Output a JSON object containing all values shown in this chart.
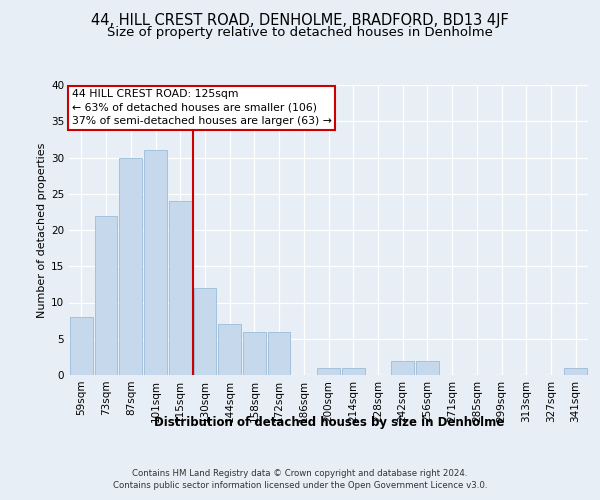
{
  "title1": "44, HILL CREST ROAD, DENHOLME, BRADFORD, BD13 4JF",
  "title2": "Size of property relative to detached houses in Denholme",
  "xlabel": "Distribution of detached houses by size in Denholme",
  "ylabel": "Number of detached properties",
  "categories": [
    "59sqm",
    "73sqm",
    "87sqm",
    "101sqm",
    "115sqm",
    "130sqm",
    "144sqm",
    "158sqm",
    "172sqm",
    "186sqm",
    "200sqm",
    "214sqm",
    "228sqm",
    "242sqm",
    "256sqm",
    "271sqm",
    "285sqm",
    "299sqm",
    "313sqm",
    "327sqm",
    "341sqm"
  ],
  "values": [
    8,
    22,
    30,
    31,
    24,
    12,
    7,
    6,
    6,
    0,
    1,
    1,
    0,
    2,
    2,
    0,
    0,
    0,
    0,
    0,
    1
  ],
  "bar_color": "#c5d8ec",
  "bar_edgecolor": "#9bbcd8",
  "vline_x": 4.5,
  "vline_color": "#cc0000",
  "annotation_text": "44 HILL CREST ROAD: 125sqm\n← 63% of detached houses are smaller (106)\n37% of semi-detached houses are larger (63) →",
  "annotation_box_edgecolor": "#cc0000",
  "background_color": "#e8eef5",
  "plot_bg_color": "#e8eef5",
  "footer_text": "Contains HM Land Registry data © Crown copyright and database right 2024.\nContains public sector information licensed under the Open Government Licence v3.0.",
  "ylim": [
    0,
    40
  ],
  "yticks": [
    0,
    5,
    10,
    15,
    20,
    25,
    30,
    35,
    40
  ],
  "title1_fontsize": 10.5,
  "title2_fontsize": 9.5,
  "xlabel_fontsize": 8.5,
  "ylabel_fontsize": 8,
  "annot_fontsize": 7.8,
  "tick_fontsize": 7.5,
  "footer_fontsize": 6.2
}
